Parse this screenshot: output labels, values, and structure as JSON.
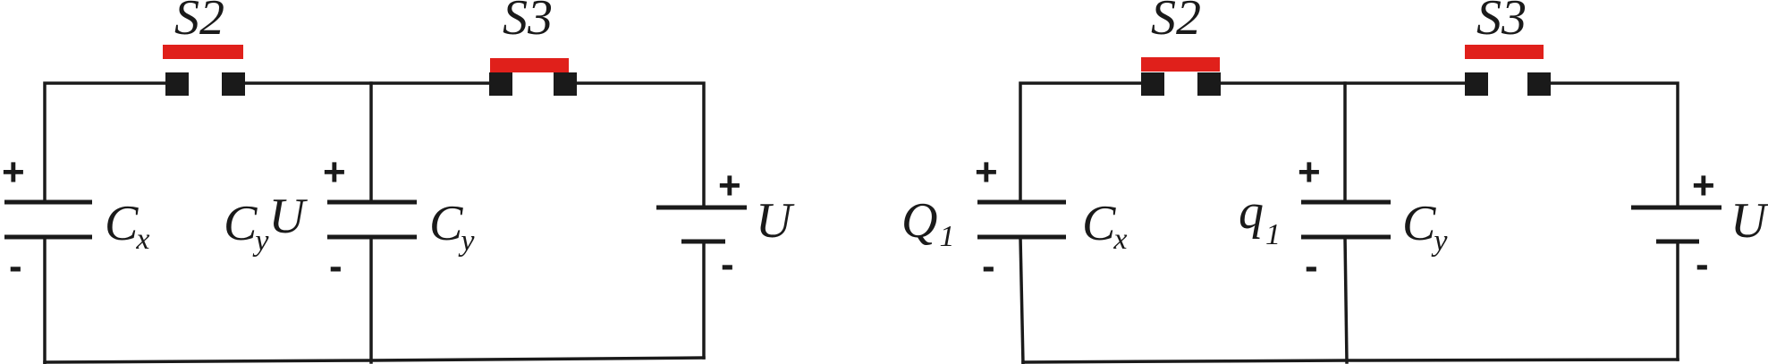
{
  "left": {
    "s2": "S2",
    "s3": "S3",
    "cx": {
      "main": "C",
      "sub": "x"
    },
    "cy": {
      "main": "C",
      "sub": "y"
    },
    "cyu": {
      "main": "C",
      "sub": "y",
      "tail": "U"
    },
    "u": "U",
    "plus": "+",
    "minus": "-"
  },
  "right": {
    "s2": "S2",
    "s3": "S3",
    "q1big": {
      "main": "Q",
      "sub": "1"
    },
    "q1small": {
      "main": "q",
      "sub": "1"
    },
    "cx": {
      "main": "C",
      "sub": "x"
    },
    "cy": {
      "main": "C",
      "sub": "y"
    },
    "u": "U",
    "plus": "+",
    "minus": "-"
  },
  "colors": {
    "switch_bar": "#e0201b",
    "wire": "#1a1a1a"
  }
}
